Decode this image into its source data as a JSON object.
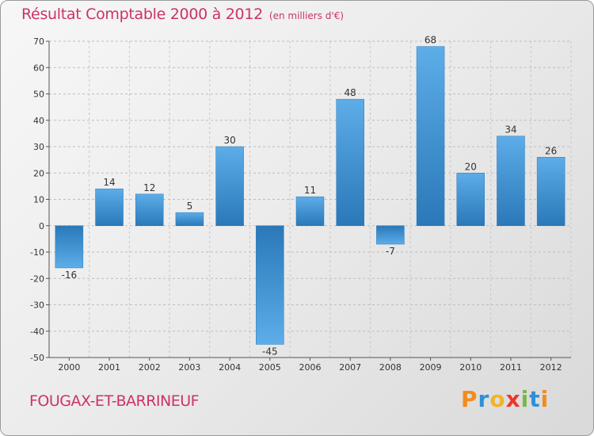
{
  "title": "Résultat Comptable 2000 à 2012",
  "subtitle": "(en milliers d'€)",
  "commune": "FOUGAX-ET-BARRINEUF",
  "logo": {
    "letters": [
      "P",
      "r",
      "o",
      "x",
      "i",
      "t",
      "i"
    ],
    "colors": [
      "#f28c1e",
      "#2f8fd8",
      "#f0b429",
      "#e8392b",
      "#7ab648",
      "#2f8fd8",
      "#f28c1e"
    ]
  },
  "colors": {
    "bar_light": "#5dade9",
    "bar_dark": "#2a78b8",
    "accent": "#cc3366"
  },
  "chart_data": {
    "type": "bar",
    "title": "Résultat Comptable 2000 à 2012",
    "ylabel": "en milliers d'€",
    "xlabel": "",
    "categories": [
      "2000",
      "2001",
      "2002",
      "2003",
      "2004",
      "2005",
      "2006",
      "2007",
      "2008",
      "2009",
      "2010",
      "2011",
      "2012"
    ],
    "values": [
      -16,
      14,
      12,
      5,
      30,
      -45,
      11,
      48,
      -7,
      68,
      20,
      34,
      26
    ],
    "ylim": [
      -50,
      70
    ],
    "yticks": [
      70,
      60,
      50,
      40,
      30,
      20,
      10,
      0,
      -10,
      -20,
      -30,
      -40,
      -50
    ],
    "grid": true
  }
}
